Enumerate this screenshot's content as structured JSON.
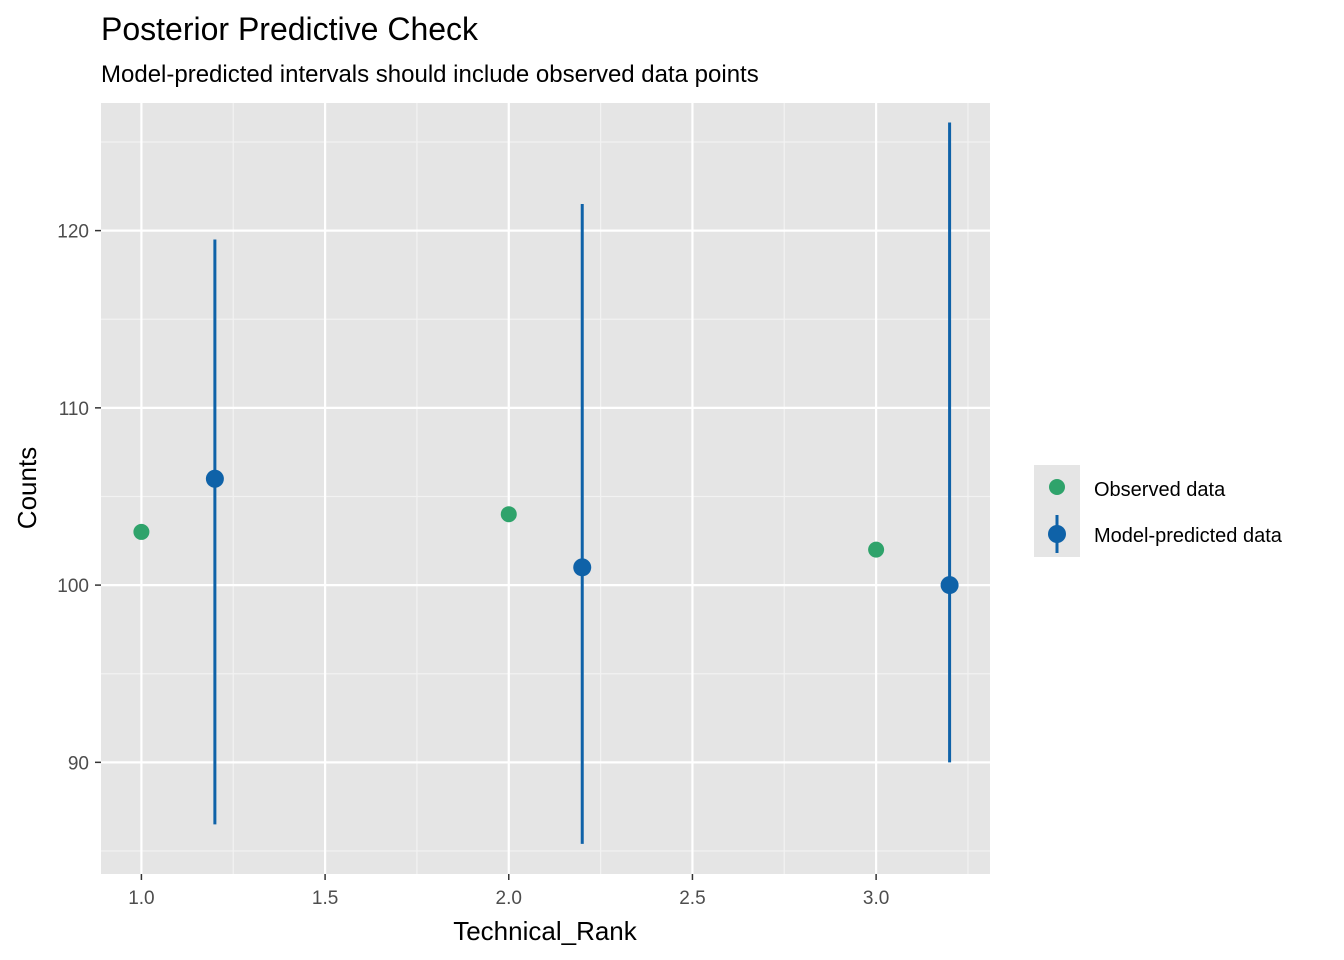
{
  "chart_data": {
    "type": "scatter",
    "title": "Posterior Predictive Check",
    "subtitle": "Model-predicted intervals should include observed data points",
    "xlabel": "Technical_Rank",
    "ylabel": "Counts",
    "xlim": [
      0.89,
      3.31
    ],
    "ylim": [
      83.7,
      127.2
    ],
    "x_ticks": [
      1.0,
      1.5,
      2.0,
      2.5,
      3.0
    ],
    "x_tick_labels": [
      "1.0",
      "1.5",
      "2.0",
      "2.5",
      "3.0"
    ],
    "y_ticks": [
      90,
      100,
      110,
      120
    ],
    "y_tick_labels": [
      "90",
      "100",
      "110",
      "120"
    ],
    "grid": true,
    "legend_position": "right",
    "series": [
      {
        "name": "Observed data",
        "color": "#2fa36b",
        "points": [
          {
            "x": 1.0,
            "y": 103
          },
          {
            "x": 2.0,
            "y": 104
          },
          {
            "x": 3.0,
            "y": 102
          }
        ]
      },
      {
        "name": "Model-predicted data",
        "color": "#0f62a8",
        "points": [
          {
            "x": 1.2,
            "y": 106,
            "lower": 86.5,
            "upper": 119.5
          },
          {
            "x": 2.2,
            "y": 101,
            "lower": 85.4,
            "upper": 121.5
          },
          {
            "x": 3.2,
            "y": 100,
            "lower": 90.0,
            "upper": 126.1
          }
        ]
      }
    ]
  }
}
